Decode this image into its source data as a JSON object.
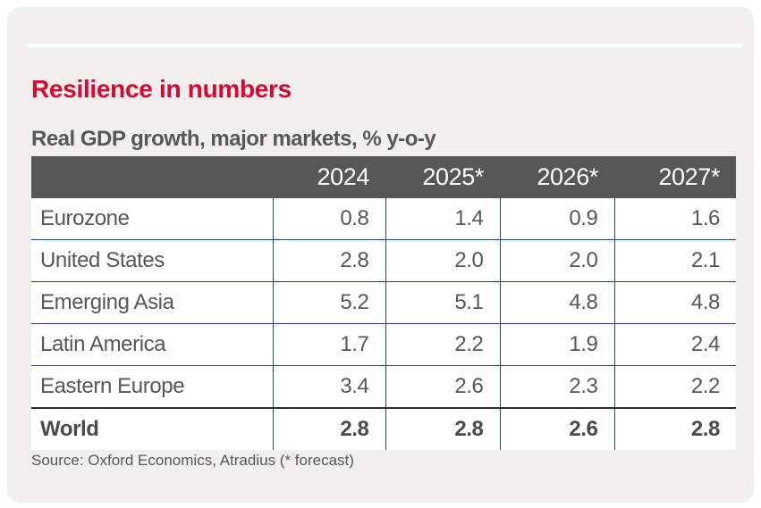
{
  "page": {
    "title": "Resilience in numbers",
    "subtitle": "Real GDP growth, major markets, % y-o-y",
    "source": "Source: Oxford Economics, Atradius (* forecast)"
  },
  "colors": {
    "accent_red": "#d9062f",
    "header_bg": "#575756",
    "grid_blue": "#1b4778",
    "total_divider": "#2a2a2a",
    "body_text": "#575756",
    "card_bg": "#f1f0ee"
  },
  "chart_data": {
    "type": "table",
    "title": "Resilience in numbers",
    "subtitle": "Real GDP growth, major markets, % y-o-y",
    "columns": [
      "",
      "2024",
      "2025*",
      "2026*",
      "2027*"
    ],
    "rows": [
      {
        "label": "Eurozone",
        "values": [
          "0.8",
          "1.4",
          "0.9",
          "1.6"
        ],
        "bold": false
      },
      {
        "label": "United States",
        "values": [
          "2.8",
          "2.0",
          "2.0",
          "2.1"
        ],
        "bold": false
      },
      {
        "label": "Emerging Asia",
        "values": [
          "5.2",
          "5.1",
          "4.8",
          "4.8"
        ],
        "bold": false
      },
      {
        "label": "Latin America",
        "values": [
          "1.7",
          "2.2",
          "1.9",
          "2.4"
        ],
        "bold": false
      },
      {
        "label": "Eastern Europe",
        "values": [
          "3.4",
          "2.6",
          "2.3",
          "2.2"
        ],
        "bold": false
      },
      {
        "label": "World",
        "values": [
          "2.8",
          "2.8",
          "2.6",
          "2.8"
        ],
        "bold": true
      }
    ],
    "footnote": "Source: Oxford Economics, Atradius (* forecast)",
    "layout": {
      "grid": "blue-rules-between-rows-and-value-columns",
      "total_row_separator": "black"
    }
  }
}
